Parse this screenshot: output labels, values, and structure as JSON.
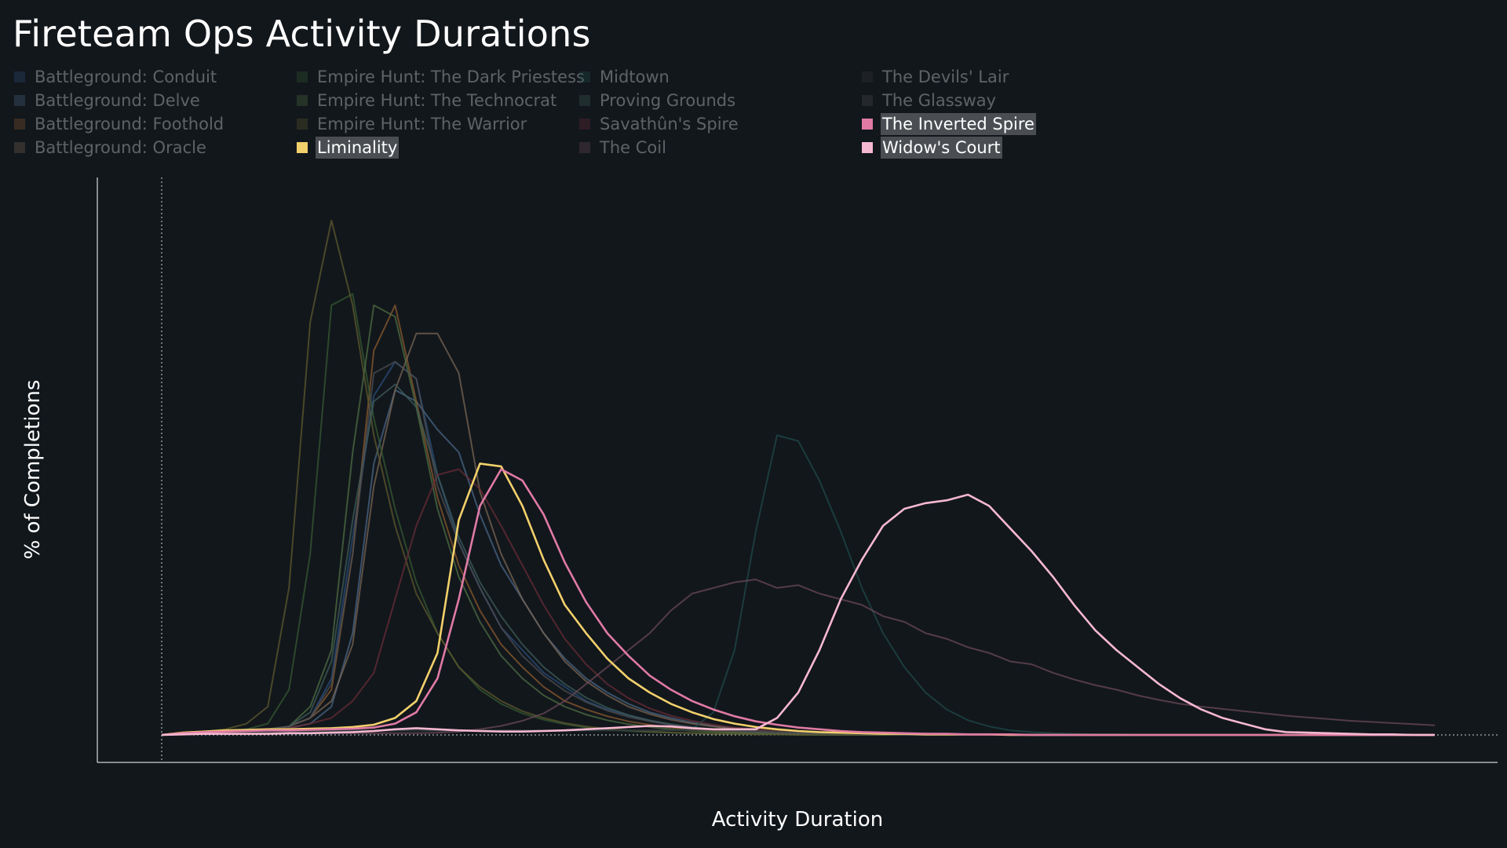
{
  "title": "Fireteam Ops Activity Durations",
  "chart_data": {
    "type": "line",
    "title": "Fireteam Ops Activity Durations",
    "xlabel": "Activity Duration",
    "ylabel": "% of Completions",
    "x_ticks_shown": false,
    "y_ticks_shown": false,
    "x": [
      0,
      1,
      2,
      3,
      4,
      5,
      6,
      7,
      8,
      9,
      10,
      11,
      12,
      13,
      14,
      15,
      16,
      17,
      18,
      19,
      20,
      21,
      22,
      23,
      24,
      25,
      26,
      27,
      28,
      29,
      30,
      31,
      32,
      33,
      34,
      35,
      36,
      37,
      38,
      39,
      40,
      41,
      42,
      43,
      44,
      45,
      46,
      47,
      48,
      49,
      50,
      51,
      52,
      53,
      54,
      55,
      56,
      57,
      58,
      59,
      60
    ],
    "xlim": [
      0,
      60
    ],
    "ylim": [
      -0.3,
      9.4
    ],
    "grid": false,
    "legend_position": "top",
    "series": [
      {
        "name": "Battleground: Conduit",
        "color": "#2a4d7a",
        "highlighted": false,
        "values": [
          0,
          0.02,
          0.04,
          0.06,
          0.08,
          0.1,
          0.15,
          0.3,
          1.0,
          3.5,
          6.0,
          6.6,
          6.3,
          4.6,
          3.4,
          2.6,
          1.9,
          1.5,
          1.1,
          0.85,
          0.6,
          0.45,
          0.35,
          0.25,
          0.18,
          0.13,
          0.09,
          0.07,
          0.05,
          0.04,
          0.03,
          0.02,
          0.02,
          0.01,
          0.01,
          0.01,
          0.01,
          0,
          0,
          0,
          0,
          0,
          0,
          0,
          0,
          0,
          0,
          0,
          0,
          0,
          0,
          0,
          0,
          0,
          0,
          0,
          0,
          0,
          0,
          0,
          0
        ]
      },
      {
        "name": "Battleground: Delve",
        "color": "#4a6785",
        "highlighted": false,
        "values": [
          0,
          0.02,
          0.04,
          0.06,
          0.08,
          0.1,
          0.12,
          0.2,
          0.5,
          1.8,
          4.8,
          6.1,
          5.9,
          5.4,
          5.0,
          3.9,
          3.0,
          2.4,
          1.8,
          1.35,
          1.0,
          0.75,
          0.55,
          0.4,
          0.3,
          0.22,
          0.16,
          0.12,
          0.08,
          0.06,
          0.05,
          0.04,
          0.03,
          0.02,
          0.02,
          0.01,
          0.01,
          0,
          0,
          0,
          0,
          0,
          0,
          0,
          0,
          0,
          0,
          0,
          0,
          0,
          0,
          0,
          0,
          0,
          0,
          0,
          0,
          0,
          0,
          0,
          0
        ]
      },
      {
        "name": "Battleground: Foothold",
        "color": "#8a5a2e",
        "highlighted": false,
        "values": [
          0,
          0.02,
          0.04,
          0.06,
          0.08,
          0.1,
          0.15,
          0.3,
          0.8,
          3.2,
          6.8,
          7.6,
          5.9,
          4.2,
          3.0,
          2.2,
          1.6,
          1.2,
          0.85,
          0.6,
          0.45,
          0.33,
          0.24,
          0.18,
          0.13,
          0.09,
          0.07,
          0.05,
          0.04,
          0.03,
          0.02,
          0.02,
          0.01,
          0.01,
          0.01,
          0,
          0,
          0,
          0,
          0,
          0,
          0,
          0,
          0,
          0,
          0,
          0,
          0,
          0,
          0,
          0,
          0,
          0,
          0,
          0,
          0,
          0,
          0,
          0,
          0,
          0
        ]
      },
      {
        "name": "Battleground: Oracle",
        "color": "#7a6652",
        "highlighted": false,
        "values": [
          0,
          0.02,
          0.04,
          0.06,
          0.08,
          0.1,
          0.15,
          0.3,
          0.6,
          1.6,
          4.4,
          6.1,
          7.1,
          7.1,
          6.4,
          4.3,
          3.2,
          2.4,
          1.8,
          1.3,
          0.95,
          0.7,
          0.5,
          0.37,
          0.27,
          0.2,
          0.15,
          0.11,
          0.08,
          0.06,
          0.05,
          0.04,
          0.03,
          0.02,
          0.02,
          0.01,
          0.01,
          0,
          0,
          0,
          0,
          0,
          0,
          0,
          0,
          0,
          0,
          0,
          0,
          0,
          0,
          0,
          0,
          0,
          0,
          0,
          0,
          0,
          0,
          0,
          0
        ]
      },
      {
        "name": "Empire Hunt: The Dark Priestess",
        "color": "#355a30",
        "highlighted": false,
        "values": [
          0,
          0.02,
          0.04,
          0.06,
          0.1,
          0.2,
          0.8,
          3.2,
          7.6,
          7.8,
          5.6,
          4.0,
          2.7,
          1.8,
          1.2,
          0.8,
          0.55,
          0.38,
          0.27,
          0.19,
          0.13,
          0.09,
          0.07,
          0.05,
          0.04,
          0.03,
          0.02,
          0.02,
          0.01,
          0.01,
          0.01,
          0,
          0,
          0,
          0,
          0,
          0,
          0,
          0,
          0,
          0,
          0,
          0,
          0,
          0,
          0,
          0,
          0,
          0,
          0,
          0,
          0,
          0,
          0,
          0,
          0,
          0,
          0,
          0,
          0,
          0
        ]
      },
      {
        "name": "Empire Hunt: The Technocrat",
        "color": "#4d6e42",
        "highlighted": false,
        "values": [
          0,
          0.02,
          0.04,
          0.06,
          0.08,
          0.1,
          0.15,
          0.5,
          1.5,
          5.0,
          7.6,
          7.4,
          5.8,
          4.0,
          2.8,
          2.0,
          1.4,
          1.0,
          0.7,
          0.5,
          0.36,
          0.26,
          0.19,
          0.14,
          0.1,
          0.07,
          0.05,
          0.04,
          0.03,
          0.02,
          0.02,
          0.01,
          0.01,
          0,
          0,
          0,
          0,
          0,
          0,
          0,
          0,
          0,
          0,
          0,
          0,
          0,
          0,
          0,
          0,
          0,
          0,
          0,
          0,
          0,
          0,
          0,
          0,
          0,
          0,
          0,
          0
        ]
      },
      {
        "name": "Empire Hunt: The Warrior",
        "color": "#5e5a2e",
        "highlighted": false,
        "values": [
          0,
          0.03,
          0.06,
          0.1,
          0.2,
          0.5,
          2.6,
          7.3,
          9.1,
          7.6,
          5.3,
          3.7,
          2.5,
          1.8,
          1.2,
          0.85,
          0.6,
          0.42,
          0.3,
          0.21,
          0.15,
          0.11,
          0.08,
          0.06,
          0.04,
          0.03,
          0.02,
          0.02,
          0.01,
          0.01,
          0,
          0,
          0,
          0,
          0,
          0,
          0,
          0,
          0,
          0,
          0,
          0,
          0,
          0,
          0,
          0,
          0,
          0,
          0,
          0,
          0,
          0,
          0,
          0,
          0,
          0,
          0,
          0,
          0,
          0,
          0
        ]
      },
      {
        "name": "Liminality",
        "color": "#f2d06b",
        "highlighted": true,
        "values": [
          0,
          0.04,
          0.06,
          0.08,
          0.09,
          0.1,
          0.1,
          0.11,
          0.12,
          0.14,
          0.18,
          0.3,
          0.6,
          1.45,
          3.8,
          4.8,
          4.75,
          4.05,
          3.1,
          2.3,
          1.8,
          1.35,
          1.0,
          0.75,
          0.55,
          0.4,
          0.28,
          0.2,
          0.14,
          0.1,
          0.07,
          0.05,
          0.04,
          0.03,
          0.02,
          0.02,
          0.01,
          0.01,
          0.01,
          0.01,
          0,
          0,
          0,
          0,
          0,
          0,
          0,
          0,
          0,
          0,
          0,
          0,
          0,
          0,
          0,
          0,
          0,
          0,
          0,
          0,
          0
        ]
      },
      {
        "name": "Midtown",
        "color": "#1f4a48",
        "highlighted": false,
        "values": [
          0,
          0.01,
          0.02,
          0.03,
          0.04,
          0.05,
          0.05,
          0.06,
          0.07,
          0.08,
          0.08,
          0.08,
          0.08,
          0.08,
          0.08,
          0.08,
          0.08,
          0.08,
          0.08,
          0.08,
          0.08,
          0.08,
          0.08,
          0.08,
          0.08,
          0.1,
          0.4,
          1.5,
          3.6,
          5.3,
          5.2,
          4.5,
          3.6,
          2.6,
          1.8,
          1.2,
          0.75,
          0.45,
          0.26,
          0.15,
          0.08,
          0.05,
          0.03,
          0.02,
          0.01,
          0.01,
          0,
          0,
          0,
          0,
          0,
          0,
          0,
          0,
          0,
          0,
          0,
          0,
          0,
          0,
          0
        ]
      },
      {
        "name": "Proving Grounds",
        "color": "#3d5c58",
        "highlighted": false,
        "values": [
          0,
          0.02,
          0.04,
          0.06,
          0.08,
          0.1,
          0.15,
          0.4,
          1.3,
          3.8,
          5.9,
          6.2,
          5.8,
          4.6,
          3.5,
          2.7,
          2.1,
          1.6,
          1.2,
          0.9,
          0.66,
          0.48,
          0.35,
          0.26,
          0.19,
          0.14,
          0.1,
          0.07,
          0.05,
          0.04,
          0.03,
          0.02,
          0.02,
          0.01,
          0.01,
          0,
          0,
          0,
          0,
          0,
          0,
          0,
          0,
          0,
          0,
          0,
          0,
          0,
          0,
          0,
          0,
          0,
          0,
          0,
          0,
          0,
          0,
          0,
          0,
          0,
          0
        ]
      },
      {
        "name": "Savathûn's Spire",
        "color": "#6a2c36",
        "highlighted": false,
        "values": [
          0,
          0.02,
          0.04,
          0.06,
          0.08,
          0.1,
          0.12,
          0.2,
          0.3,
          0.6,
          1.1,
          2.4,
          3.7,
          4.6,
          4.7,
          4.35,
          3.7,
          3.0,
          2.3,
          1.7,
          1.25,
          0.9,
          0.65,
          0.47,
          0.34,
          0.25,
          0.18,
          0.13,
          0.1,
          0.07,
          0.05,
          0.04,
          0.03,
          0.02,
          0.02,
          0.01,
          0.01,
          0,
          0,
          0,
          0,
          0,
          0,
          0,
          0,
          0,
          0,
          0,
          0,
          0,
          0,
          0,
          0,
          0,
          0,
          0,
          0,
          0,
          0,
          0,
          0
        ]
      },
      {
        "name": "The Coil",
        "color": "#6b4a55",
        "highlighted": false,
        "values": [
          0,
          0.01,
          0.02,
          0.03,
          0.03,
          0.03,
          0.03,
          0.03,
          0.03,
          0.03,
          0.03,
          0.03,
          0.03,
          0.04,
          0.06,
          0.1,
          0.16,
          0.25,
          0.38,
          0.6,
          0.9,
          1.2,
          1.5,
          1.8,
          2.2,
          2.5,
          2.6,
          2.7,
          2.75,
          2.6,
          2.65,
          2.5,
          2.4,
          2.3,
          2.1,
          2.0,
          1.8,
          1.7,
          1.55,
          1.45,
          1.3,
          1.25,
          1.1,
          0.98,
          0.88,
          0.8,
          0.7,
          0.62,
          0.55,
          0.5,
          0.46,
          0.42,
          0.38,
          0.34,
          0.31,
          0.28,
          0.25,
          0.23,
          0.21,
          0.19,
          0.17
        ]
      },
      {
        "name": "The Devils' Lair",
        "color": "#35373a",
        "highlighted": false,
        "values": [
          0,
          0.02,
          0.03,
          0.04,
          0.05,
          0.05,
          0.06,
          0.06,
          0.07,
          0.07,
          0.08,
          0.08,
          0.08,
          0.08,
          0.08,
          0.08,
          0.08,
          0.08,
          0.08,
          0.08,
          0.08,
          0.08,
          0.08,
          0.08,
          0.08,
          0.08,
          0.08,
          0.07,
          0.07,
          0.06,
          0.06,
          0.05,
          0.05,
          0.04,
          0.04,
          0.03,
          0.03,
          0.02,
          0.02,
          0.02,
          0.01,
          0.01,
          0.01,
          0.01,
          0,
          0,
          0,
          0,
          0,
          0,
          0,
          0,
          0,
          0,
          0,
          0,
          0,
          0,
          0,
          0,
          0
        ]
      },
      {
        "name": "The Glassway",
        "color": "#4c4e51",
        "highlighted": false,
        "values": [
          0,
          0.02,
          0.04,
          0.06,
          0.08,
          0.1,
          0.15,
          0.3,
          0.9,
          3.2,
          6.4,
          6.6,
          6.3,
          4.4,
          3.4,
          2.6,
          1.9,
          1.4,
          1.05,
          0.78,
          0.58,
          0.43,
          0.32,
          0.24,
          0.18,
          0.13,
          0.1,
          0.07,
          0.05,
          0.04,
          0.03,
          0.02,
          0.02,
          0.01,
          0.01,
          0,
          0,
          0,
          0,
          0,
          0,
          0,
          0,
          0,
          0,
          0,
          0,
          0,
          0,
          0,
          0,
          0,
          0,
          0,
          0,
          0,
          0,
          0,
          0,
          0,
          0
        ]
      },
      {
        "name": "The Inverted Spire",
        "color": "#e07aa5",
        "highlighted": true,
        "values": [
          0,
          0.03,
          0.05,
          0.06,
          0.07,
          0.08,
          0.08,
          0.09,
          0.1,
          0.11,
          0.13,
          0.2,
          0.4,
          1.0,
          2.4,
          4.05,
          4.7,
          4.5,
          3.9,
          3.05,
          2.35,
          1.8,
          1.4,
          1.05,
          0.8,
          0.6,
          0.45,
          0.33,
          0.24,
          0.18,
          0.13,
          0.1,
          0.07,
          0.05,
          0.04,
          0.03,
          0.02,
          0.02,
          0.01,
          0.01,
          0.01,
          0,
          0,
          0,
          0,
          0,
          0,
          0,
          0,
          0,
          0,
          0,
          0,
          0,
          0,
          0,
          0,
          0,
          0,
          0,
          0
        ]
      },
      {
        "name": "Widow's Court",
        "color": "#f6b8d0",
        "highlighted": true,
        "values": [
          0,
          0.01,
          0.02,
          0.02,
          0.02,
          0.02,
          0.03,
          0.03,
          0.04,
          0.05,
          0.07,
          0.1,
          0.12,
          0.1,
          0.08,
          0.07,
          0.06,
          0.06,
          0.07,
          0.08,
          0.1,
          0.12,
          0.14,
          0.16,
          0.15,
          0.12,
          0.1,
          0.1,
          0.1,
          0.3,
          0.75,
          1.5,
          2.4,
          3.1,
          3.7,
          4.0,
          4.1,
          4.15,
          4.25,
          4.05,
          3.65,
          3.25,
          2.8,
          2.3,
          1.85,
          1.5,
          1.2,
          0.9,
          0.65,
          0.45,
          0.3,
          0.2,
          0.1,
          0.05,
          0.04,
          0.03,
          0.02,
          0.01,
          0.01,
          0,
          0
        ]
      }
    ]
  }
}
